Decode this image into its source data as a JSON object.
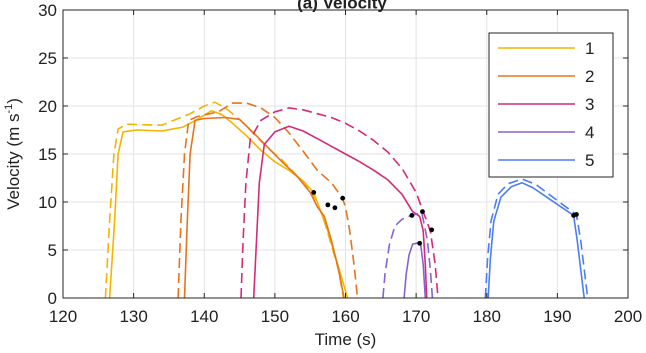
{
  "chart_data": {
    "type": "line",
    "title": "(a) Velocity",
    "xlabel": "Time (s)",
    "ylabel_main": "Velocity (m s",
    "ylabel_sup": "-1",
    "ylabel_close": ")",
    "xlim": [
      120,
      200
    ],
    "ylim": [
      0,
      30
    ],
    "xticks": [
      "120",
      "130",
      "140",
      "150",
      "160",
      "170",
      "180",
      "190",
      "200"
    ],
    "yticks": [
      "0",
      "5",
      "10",
      "15",
      "20",
      "25",
      "30"
    ],
    "grid": true,
    "legend_position": "top-right",
    "legend_labels": [
      "1",
      "2",
      "3",
      "4",
      "5"
    ],
    "series": [
      {
        "name": "1",
        "color": "#f4b400",
        "solid": [
          [
            126.6,
            0
          ],
          [
            127.3,
            8
          ],
          [
            127.8,
            15
          ],
          [
            128.5,
            17.3
          ],
          [
            130.5,
            17.5
          ],
          [
            134,
            17.4
          ],
          [
            137,
            17.8
          ],
          [
            139,
            18.6
          ],
          [
            141,
            19.5
          ],
          [
            142.5,
            19.1
          ],
          [
            144,
            18.2
          ],
          [
            146,
            16.9
          ],
          [
            148,
            15.4
          ],
          [
            150,
            14.2
          ],
          [
            152,
            13.3
          ],
          [
            154,
            12.2
          ],
          [
            155.5,
            11
          ],
          [
            156.5,
            9
          ],
          [
            157.5,
            7
          ],
          [
            158.5,
            4.5
          ],
          [
            159.5,
            2
          ],
          [
            160.3,
            0
          ]
        ],
        "dashed": [
          [
            126,
            0
          ],
          [
            126.6,
            8
          ],
          [
            127.2,
            15
          ],
          [
            127.8,
            17.6
          ],
          [
            129,
            18.1
          ],
          [
            134,
            18
          ],
          [
            138,
            19.2
          ],
          [
            140,
            20
          ],
          [
            141.5,
            20.4
          ],
          [
            143,
            19.8
          ],
          [
            145,
            18.6
          ],
          [
            147,
            17.1
          ],
          [
            149,
            15.6
          ],
          [
            151,
            14.4
          ],
          [
            153,
            12.8
          ],
          [
            155,
            11.2
          ],
          [
            156,
            10
          ],
          [
            157,
            8
          ],
          [
            158,
            5.5
          ],
          [
            159,
            3
          ],
          [
            159.7,
            0
          ]
        ]
      },
      {
        "name": "2",
        "color": "#e8731c",
        "solid": [
          [
            137.2,
            0
          ],
          [
            137.6,
            8
          ],
          [
            138,
            15
          ],
          [
            138.7,
            18.5
          ],
          [
            140,
            18.7
          ],
          [
            143,
            18.8
          ],
          [
            145,
            18.6
          ],
          [
            147,
            17.2
          ],
          [
            149,
            15.7
          ],
          [
            151,
            14.2
          ],
          [
            153,
            12.8
          ],
          [
            155,
            11
          ],
          [
            156,
            9.5
          ],
          [
            157,
            8.5
          ],
          [
            158,
            6
          ],
          [
            159,
            3
          ],
          [
            159.8,
            0
          ]
        ],
        "dashed": [
          [
            136.3,
            0
          ],
          [
            136.7,
            8
          ],
          [
            137.2,
            15
          ],
          [
            137.8,
            18.5
          ],
          [
            139,
            18.9
          ],
          [
            142,
            19.4
          ],
          [
            144,
            20.3
          ],
          [
            146,
            20.3
          ],
          [
            148,
            19.8
          ],
          [
            150,
            18.8
          ],
          [
            152,
            17.2
          ],
          [
            154,
            15.3
          ],
          [
            156,
            13.3
          ],
          [
            158,
            12
          ],
          [
            159,
            11
          ],
          [
            159.5,
            10.5
          ],
          [
            160,
            9.5
          ],
          [
            160.6,
            7
          ],
          [
            161.2,
            3.5
          ],
          [
            161.7,
            0
          ]
        ]
      },
      {
        "name": "3",
        "color": "#d32b77",
        "solid": [
          [
            147,
            0
          ],
          [
            147.4,
            6
          ],
          [
            147.8,
            12
          ],
          [
            148.5,
            16
          ],
          [
            150,
            17.3
          ],
          [
            152,
            17.9
          ],
          [
            154,
            17.4
          ],
          [
            156,
            16.6
          ],
          [
            158,
            15.8
          ],
          [
            160,
            15
          ],
          [
            162,
            14.2
          ],
          [
            164,
            13.3
          ],
          [
            166,
            12.3
          ],
          [
            168,
            10.8
          ],
          [
            169.5,
            9
          ],
          [
            170.5,
            8.5
          ],
          [
            171,
            7
          ],
          [
            171.3,
            3.5
          ],
          [
            171.5,
            0
          ]
        ],
        "dashed": [
          [
            145.2,
            0
          ],
          [
            145.5,
            6
          ],
          [
            145.9,
            12
          ],
          [
            146.5,
            16.5
          ],
          [
            148,
            18.5
          ],
          [
            150,
            19.4
          ],
          [
            152,
            19.8
          ],
          [
            154,
            19.6
          ],
          [
            156,
            19.2
          ],
          [
            158,
            18.8
          ],
          [
            160,
            18.2
          ],
          [
            162,
            17.4
          ],
          [
            164,
            16.4
          ],
          [
            166,
            15.2
          ],
          [
            168,
            13.5
          ],
          [
            170,
            11
          ],
          [
            171,
            9
          ],
          [
            172,
            7
          ],
          [
            172.7,
            3.5
          ],
          [
            173.1,
            0
          ]
        ]
      },
      {
        "name": "4",
        "color": "#8a62cf",
        "solid": [
          [
            168.3,
            0
          ],
          [
            168.6,
            2.5
          ],
          [
            169,
            4.5
          ],
          [
            169.5,
            5.6
          ],
          [
            170.6,
            5.8
          ],
          [
            171,
            3.5
          ],
          [
            171.3,
            0
          ]
        ],
        "dashed": [
          [
            165.3,
            0
          ],
          [
            165.6,
            2.5
          ],
          [
            166.2,
            5.5
          ],
          [
            167,
            7.5
          ],
          [
            168,
            8.2
          ],
          [
            169.3,
            8.6
          ],
          [
            170.8,
            8.9
          ],
          [
            171.6,
            6
          ],
          [
            172,
            3
          ],
          [
            172.3,
            0
          ]
        ]
      },
      {
        "name": "5",
        "color": "#4d7df2",
        "solid": [
          [
            180.2,
            0
          ],
          [
            180.5,
            4
          ],
          [
            181,
            8
          ],
          [
            182,
            10.5
          ],
          [
            183.5,
            11.6
          ],
          [
            185,
            12
          ],
          [
            186.5,
            11.5
          ],
          [
            188.5,
            10.5
          ],
          [
            190.5,
            9.5
          ],
          [
            192.3,
            8.6
          ],
          [
            192.8,
            6
          ],
          [
            193.3,
            3
          ],
          [
            193.8,
            0
          ]
        ],
        "dashed": [
          [
            179.8,
            0
          ],
          [
            180.1,
            4
          ],
          [
            180.6,
            8
          ],
          [
            181.6,
            10.8
          ],
          [
            183,
            11.9
          ],
          [
            185,
            12.4
          ],
          [
            187,
            11.8
          ],
          [
            189,
            10.7
          ],
          [
            191,
            9.6
          ],
          [
            192.7,
            8.7
          ],
          [
            193.3,
            6
          ],
          [
            193.8,
            3
          ],
          [
            194.3,
            0
          ]
        ]
      }
    ],
    "markers": [
      [
        155.5,
        11
      ],
      [
        157.5,
        9.7
      ],
      [
        158.5,
        9.4
      ],
      [
        159.6,
        10.4
      ],
      [
        169.4,
        8.6
      ],
      [
        170.5,
        5.7
      ],
      [
        170.9,
        9
      ],
      [
        172.2,
        7.1
      ],
      [
        192.3,
        8.6
      ],
      [
        192.7,
        8.7
      ]
    ]
  }
}
